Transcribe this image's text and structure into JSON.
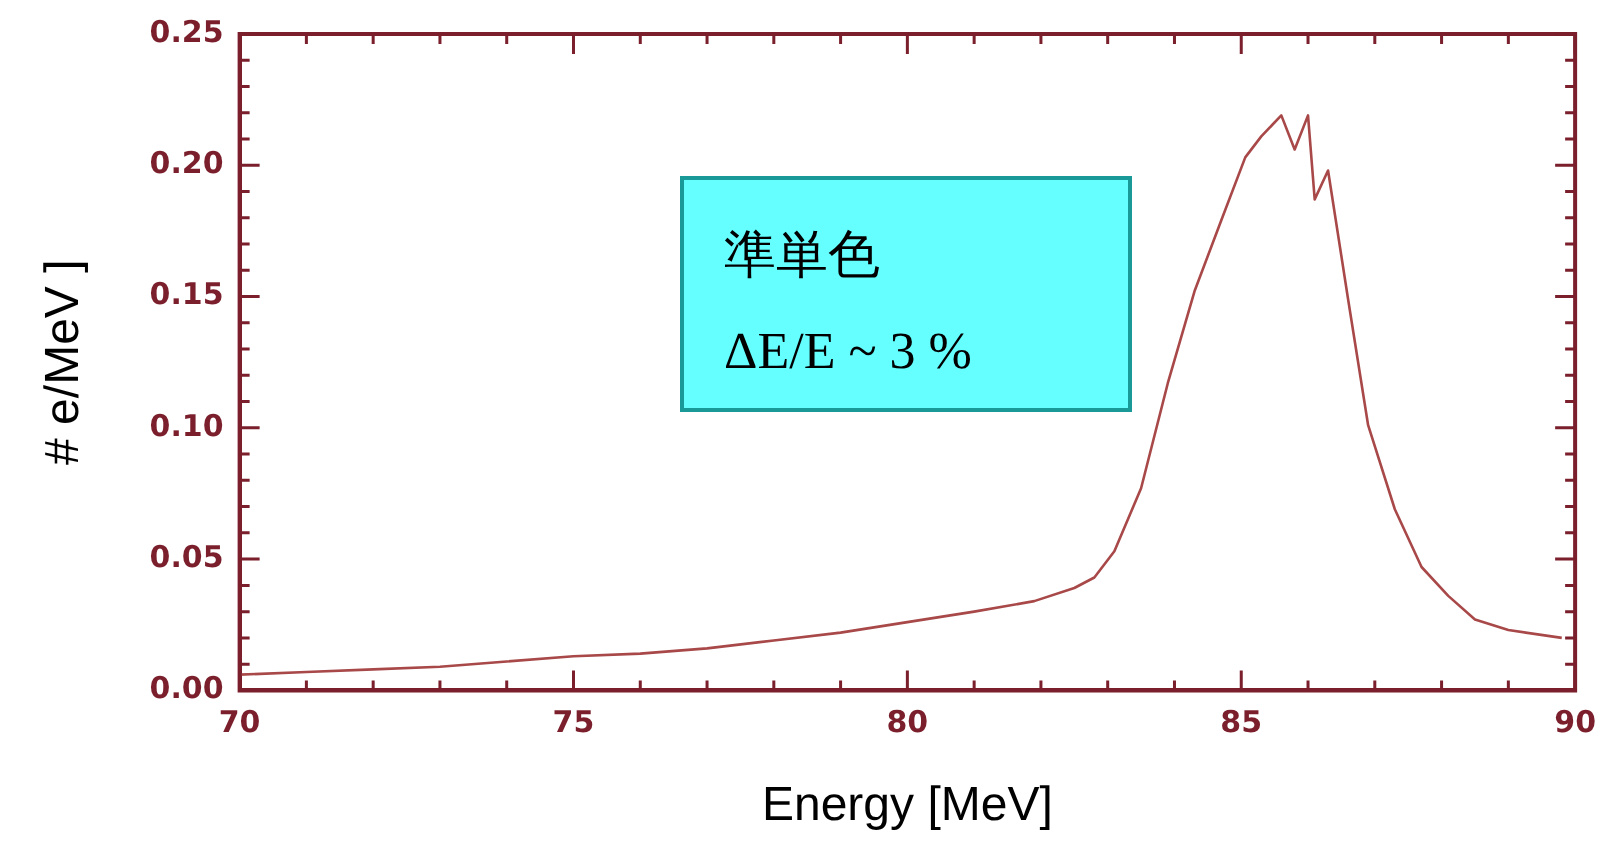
{
  "chart_data": {
    "type": "line",
    "xlabel": "Energy [MeV]",
    "ylabel": "# e/MeV ]",
    "annotations": [
      "準単色",
      "ΔE/E ~ 3 %"
    ],
    "x": [
      70,
      71,
      72,
      73,
      74,
      75,
      76,
      77,
      78,
      79,
      80,
      81,
      81.9,
      82.5,
      82.8,
      83.1,
      83.5,
      83.9,
      84.3,
      84.7,
      85.06,
      85.3,
      85.6,
      85.8,
      86.0,
      86.1,
      86.3,
      86.6,
      86.9,
      87.3,
      87.7,
      88.1,
      88.5,
      89.0,
      89.8
    ],
    "series": [
      {
        "color": "#a84848",
        "values": [
          0.006,
          0.007,
          0.008,
          0.009,
          0.011,
          0.013,
          0.014,
          0.016,
          0.019,
          0.022,
          0.026,
          0.03,
          0.034,
          0.039,
          0.043,
          0.053,
          0.077,
          0.117,
          0.152,
          0.179,
          0.203,
          0.211,
          0.219,
          0.206,
          0.219,
          0.187,
          0.198,
          0.149,
          0.101,
          0.069,
          0.047,
          0.036,
          0.027,
          0.023,
          0.02
        ]
      }
    ],
    "xlim": [
      70,
      90
    ],
    "xticks": [
      70,
      {
        "value": 71,
        "label": null
      },
      {
        "value": 72,
        "label": null
      },
      {
        "value": 73,
        "label": null
      },
      {
        "value": 74,
        "label": null
      },
      75,
      {
        "value": 76,
        "label": null
      },
      {
        "value": 77,
        "label": null
      },
      {
        "value": 78,
        "label": null
      },
      {
        "value": 79,
        "label": null
      },
      80,
      {
        "value": 81,
        "label": null
      },
      {
        "value": 82,
        "label": null
      },
      {
        "value": 83,
        "label": null
      },
      {
        "value": 84,
        "label": null
      },
      85,
      {
        "value": 86,
        "label": null
      },
      {
        "value": 87,
        "label": null
      },
      {
        "value": 88,
        "label": null
      },
      {
        "value": 89,
        "label": null
      },
      90
    ],
    "ylim": [
      0,
      0.25
    ],
    "yticks": [
      {
        "value": 0,
        "label": "0.00"
      },
      {
        "value": 0.01,
        "label": null
      },
      {
        "value": 0.02,
        "label": null
      },
      {
        "value": 0.03,
        "label": null
      },
      {
        "value": 0.04,
        "label": null
      },
      0.05,
      {
        "value": 0.06,
        "label": null
      },
      {
        "value": 0.07,
        "label": null
      },
      {
        "value": 0.08,
        "label": null
      },
      {
        "value": 0.09,
        "label": null
      },
      {
        "value": 0.1,
        "label": "0.10"
      },
      {
        "value": 0.11,
        "label": null
      },
      {
        "value": 0.12,
        "label": null
      },
      {
        "value": 0.13,
        "label": null
      },
      {
        "value": 0.14,
        "label": null
      },
      0.15,
      {
        "value": 0.16,
        "label": null
      },
      {
        "value": 0.17,
        "label": null
      },
      {
        "value": 0.18,
        "label": null
      },
      {
        "value": 0.19,
        "label": null
      },
      {
        "value": 0.2,
        "label": "0.20"
      },
      {
        "value": 0.21,
        "label": null
      },
      {
        "value": 0.22,
        "label": null
      },
      {
        "value": 0.23,
        "label": null
      },
      {
        "value": 0.24,
        "label": null
      },
      0.25
    ],
    "grid": false,
    "legend": false,
    "marker": "none",
    "line_style": "solid"
  }
}
